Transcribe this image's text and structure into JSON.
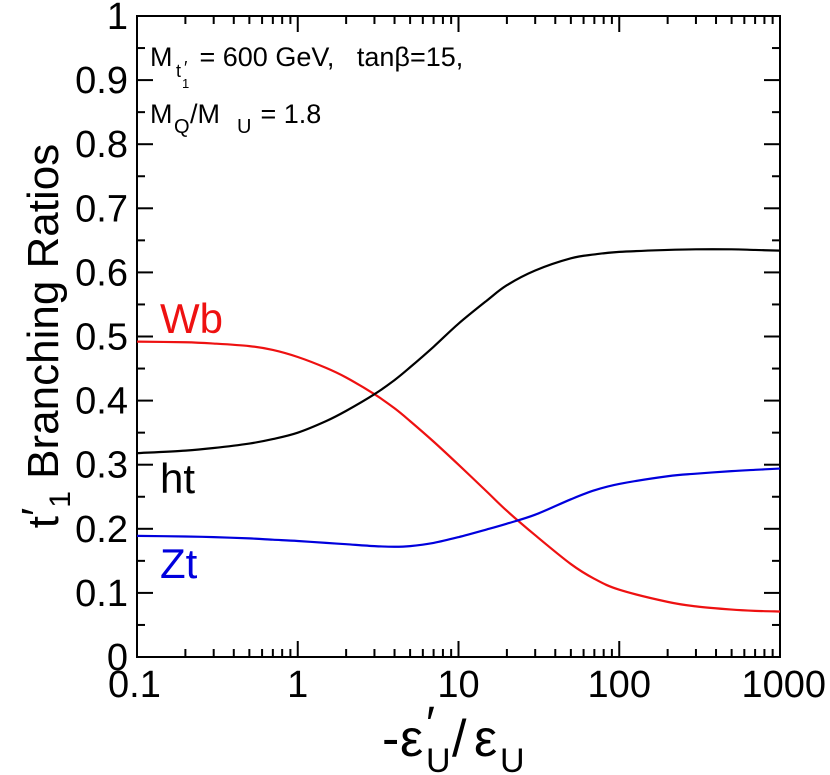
{
  "chart_data": {
    "type": "line",
    "x_scale": "log",
    "xlim": [
      0.1,
      1000
    ],
    "ylim": [
      0,
      1
    ],
    "x_ticks": [
      {
        "value": 0.1,
        "label": "0.1"
      },
      {
        "value": 1,
        "label": "1"
      },
      {
        "value": 10,
        "label": "10"
      },
      {
        "value": 100,
        "label": "100"
      },
      {
        "value": 1000,
        "label": "1000"
      }
    ],
    "y_ticks": [
      {
        "value": 0,
        "label": "0"
      },
      {
        "value": 0.1,
        "label": "0.1"
      },
      {
        "value": 0.2,
        "label": "0.2"
      },
      {
        "value": 0.3,
        "label": "0.3"
      },
      {
        "value": 0.4,
        "label": "0.4"
      },
      {
        "value": 0.5,
        "label": "0.5"
      },
      {
        "value": 0.6,
        "label": "0.6"
      },
      {
        "value": 0.7,
        "label": "0.7"
      },
      {
        "value": 0.8,
        "label": "0.8"
      },
      {
        "value": 0.9,
        "label": "0.9"
      },
      {
        "value": 1,
        "label": "1"
      }
    ],
    "ylabel": {
      "main": "t",
      "prime": "′",
      "sub": "1",
      "rest": " Branching Ratios"
    },
    "xlabel": {
      "minus": "-",
      "eps": "ε",
      "prime": "′",
      "sub_u": "U",
      "slash": "/"
    },
    "annotation_line1": {
      "m": "M",
      "sub_t": "t",
      "sub_prime": "′",
      "sub_one": "1",
      "rest": " = 600 GeV,   tanβ=15,"
    },
    "annotation_line2": {
      "m1": "M",
      "sub_q": "Q",
      "slash": "/M",
      "sub_u": "U",
      "rest": " = 1.8"
    },
    "series": [
      {
        "name": "Wb",
        "label": "Wb",
        "color": "#ee1111",
        "x": [
          0.1,
          0.2,
          0.3,
          0.5,
          0.7,
          1,
          1.5,
          2,
          3,
          4,
          5,
          7,
          10,
          15,
          20,
          30,
          50,
          70,
          100,
          200,
          300,
          500,
          700,
          1000
        ],
        "y": [
          0.492,
          0.491,
          0.489,
          0.485,
          0.479,
          0.468,
          0.451,
          0.436,
          0.41,
          0.388,
          0.368,
          0.336,
          0.3,
          0.258,
          0.228,
          0.19,
          0.145,
          0.122,
          0.105,
          0.086,
          0.079,
          0.074,
          0.072,
          0.071
        ]
      },
      {
        "name": "ht",
        "label": "ht",
        "color": "#000000",
        "x": [
          0.1,
          0.2,
          0.3,
          0.5,
          0.7,
          1,
          1.5,
          2,
          3,
          4,
          5,
          7,
          10,
          15,
          20,
          30,
          50,
          70,
          100,
          200,
          300,
          500,
          700,
          1000
        ],
        "y": [
          0.318,
          0.322,
          0.326,
          0.333,
          0.34,
          0.35,
          0.368,
          0.384,
          0.41,
          0.432,
          0.452,
          0.484,
          0.52,
          0.556,
          0.58,
          0.603,
          0.622,
          0.628,
          0.632,
          0.635,
          0.636,
          0.636,
          0.635,
          0.634
        ]
      },
      {
        "name": "Zt",
        "label": "Zt",
        "color": "#0000dd",
        "x": [
          0.1,
          0.2,
          0.3,
          0.5,
          0.7,
          1,
          1.5,
          2,
          3,
          4,
          5,
          7,
          10,
          15,
          20,
          30,
          50,
          70,
          100,
          200,
          300,
          500,
          700,
          1000
        ],
        "y": [
          0.189,
          0.188,
          0.187,
          0.185,
          0.183,
          0.181,
          0.178,
          0.176,
          0.173,
          0.172,
          0.173,
          0.178,
          0.187,
          0.199,
          0.208,
          0.222,
          0.246,
          0.26,
          0.27,
          0.282,
          0.286,
          0.29,
          0.292,
          0.294
        ]
      }
    ]
  }
}
